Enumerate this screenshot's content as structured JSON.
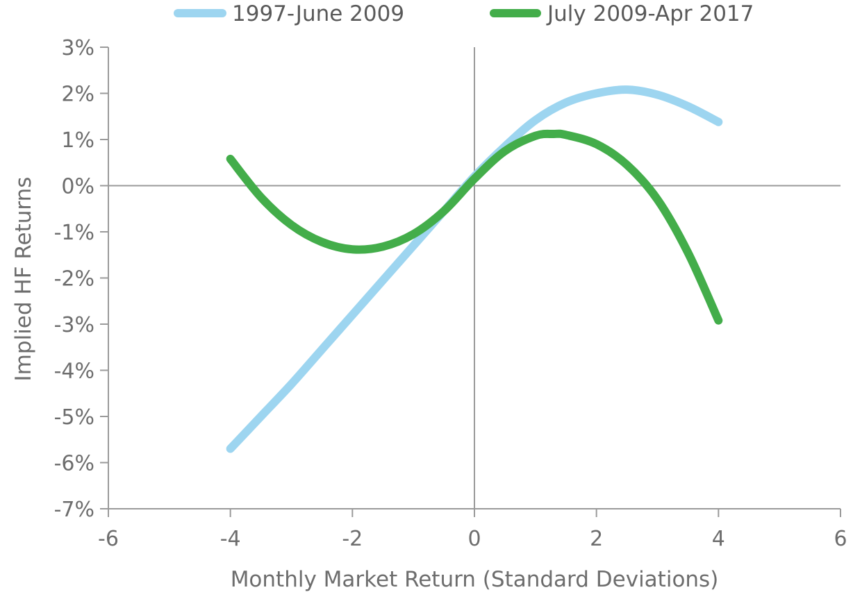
{
  "chart_data": {
    "type": "line",
    "title": "",
    "xlabel": "Monthly Market Return (Standard Deviations)",
    "ylabel": "Implied HF Returns",
    "xlim": [
      -6,
      6
    ],
    "ylim": [
      -7,
      3
    ],
    "x_ticks": [
      -6,
      -4,
      -2,
      0,
      2,
      4,
      6
    ],
    "x_tick_labels": [
      "-6",
      "-4",
      "-2",
      "0",
      "2",
      "4",
      "6"
    ],
    "y_ticks": [
      3,
      2,
      1,
      0,
      -1,
      -2,
      -3,
      -4,
      -5,
      -6,
      -7
    ],
    "y_tick_labels": [
      "3%",
      "2%",
      "1%",
      "0%",
      "-1%",
      "-2%",
      "-3%",
      "-4%",
      "-5%",
      "-6%",
      "-7%"
    ],
    "grid": false,
    "legend_position": "top",
    "x_unit": "standard deviations",
    "y_unit": "percent",
    "series": [
      {
        "name": "1997-June 2009",
        "color": "#9dd5f0",
        "x": [
          -4,
          -3.5,
          -3,
          -2.5,
          -2,
          -1.5,
          -1,
          -0.5,
          0,
          0.5,
          1,
          1.5,
          2,
          2.5,
          3,
          3.5,
          4
        ],
        "y": [
          -5.7,
          -5.0,
          -4.3,
          -3.55,
          -2.8,
          -2.05,
          -1.3,
          -0.55,
          0.2,
          0.85,
          1.42,
          1.8,
          2.0,
          2.08,
          1.97,
          1.72,
          1.38
        ]
      },
      {
        "name": "July 2009-Apr 2017",
        "color": "#43ad4a",
        "x": [
          -4,
          -3.5,
          -3,
          -2.5,
          -2,
          -1.5,
          -1,
          -0.5,
          0,
          0.5,
          1,
          1.3,
          1.5,
          2,
          2.5,
          3,
          3.5,
          4
        ],
        "y": [
          0.58,
          -0.25,
          -0.85,
          -1.22,
          -1.38,
          -1.32,
          -1.05,
          -0.55,
          0.15,
          0.75,
          1.08,
          1.12,
          1.1,
          0.9,
          0.45,
          -0.3,
          -1.45,
          -2.92
        ]
      }
    ]
  }
}
